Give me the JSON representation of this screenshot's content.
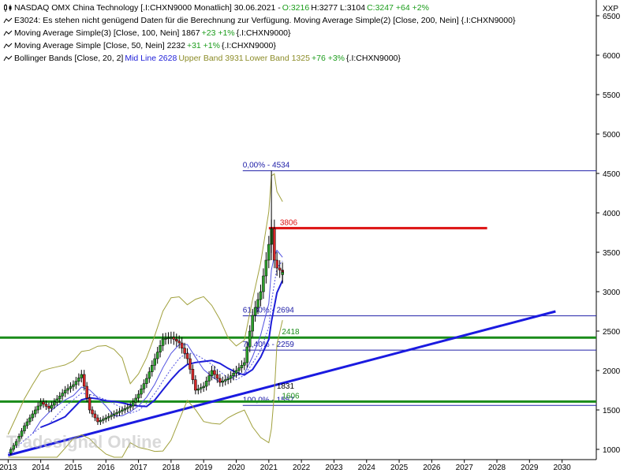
{
  "legend": {
    "line1": {
      "prefix": "NASDAQ OMX China Technology [.I:CHXN9000  Monatlich] 30.06.2021 - ",
      "open": "O:3216",
      "hlc": " H:3277 L:3104 ",
      "close_change": "C:3247 +64 +2%"
    },
    "line2": "E3024: Es stehen nicht genügend Daten für die Berechnung zur Verfügung. Moving Average Simple(2) [Close, 200, Nein] {.I:CHXN9000}",
    "line3": {
      "text": "Moving Average Simple(3) [Close, 100, Nein] 1867 ",
      "change": "+23 +1%",
      "suffix": " {.I:CHXN9000}"
    },
    "line4": {
      "text": "Moving Average Simple [Close, 50, Nein] 2232 ",
      "change": "+31 +1%",
      "suffix": " {.I:CHXN9000}"
    },
    "line5": {
      "prefix": "Bollinger Bands [Close, 20, 2] ",
      "mid": "Mid Line 2628",
      "upper": " Upper Band 3931",
      "lower": " Lower Band 1325 ",
      "change": "+76 +3%",
      "suffix": " {.I:CHXN9000}"
    }
  },
  "colors": {
    "candle_up": "#2ca02c",
    "candle_down": "#d62728",
    "wick": "#000000",
    "bollinger": "#a0a03c",
    "ma100": "#1d1dd8",
    "ma50": "#5050e0",
    "trendline": "#1a1ae0",
    "fib": "#2020a8",
    "support": "#1a8c1a",
    "resistance": "#dd1111"
  },
  "chart_data": {
    "type": "candlestick",
    "instrument": ".I:CHXN9000",
    "interval": "Monatlich",
    "x_axis": {
      "labels": [
        "2013",
        "2014",
        "2015",
        "2016",
        "2017",
        "2018",
        "2019",
        "2020",
        "2021",
        "2022",
        "2023",
        "2024",
        "2025",
        "2026",
        "2027",
        "2028",
        "2029",
        "2030"
      ]
    },
    "y_axis": {
      "label": "XXP",
      "ticks": [
        1000,
        1500,
        2000,
        2500,
        3000,
        3500,
        4000,
        4500,
        5000,
        5500,
        6000,
        6500
      ],
      "range": [
        870,
        6700
      ]
    },
    "closes": [
      {
        "year": 2013.0,
        "close": 950
      },
      {
        "year": 2013.25,
        "close": 1100
      },
      {
        "year": 2013.5,
        "close": 1300
      },
      {
        "year": 2013.75,
        "close": 1450
      },
      {
        "year": 2014.0,
        "close": 1600
      },
      {
        "year": 2014.25,
        "close": 1520
      },
      {
        "year": 2014.5,
        "close": 1640
      },
      {
        "year": 2014.75,
        "close": 1750
      },
      {
        "year": 2015.0,
        "close": 1820
      },
      {
        "year": 2015.25,
        "close": 1950
      },
      {
        "year": 2015.5,
        "close": 1500
      },
      {
        "year": 2015.75,
        "close": 1350
      },
      {
        "year": 2016.0,
        "close": 1400
      },
      {
        "year": 2016.25,
        "close": 1450
      },
      {
        "year": 2016.5,
        "close": 1500
      },
      {
        "year": 2016.75,
        "close": 1550
      },
      {
        "year": 2017.0,
        "close": 1700
      },
      {
        "year": 2017.25,
        "close": 1900
      },
      {
        "year": 2017.5,
        "close": 2150
      },
      {
        "year": 2017.75,
        "close": 2400
      },
      {
        "year": 2018.0,
        "close": 2420
      },
      {
        "year": 2018.25,
        "close": 2350
      },
      {
        "year": 2018.5,
        "close": 2150
      },
      {
        "year": 2018.75,
        "close": 1750
      },
      {
        "year": 2019.0,
        "close": 1800
      },
      {
        "year": 2019.25,
        "close": 2000
      },
      {
        "year": 2019.5,
        "close": 1850
      },
      {
        "year": 2019.75,
        "close": 1900
      },
      {
        "year": 2020.0,
        "close": 2000
      },
      {
        "year": 2020.25,
        "close": 2100
      },
      {
        "year": 2020.5,
        "close": 2700
      },
      {
        "year": 2020.75,
        "close": 3000
      },
      {
        "year": 2021.0,
        "close": 3600
      },
      {
        "year": 2021.08,
        "close": 3800
      },
      {
        "year": 2021.17,
        "close": 3400
      },
      {
        "year": 2021.25,
        "close": 3300
      },
      {
        "year": 2021.42,
        "close": 3247
      }
    ],
    "last_bar": {
      "date": "30.06.2021",
      "open": 3216,
      "high": 3277,
      "low": 3104,
      "close": 3247,
      "change": 64,
      "change_pct": 2
    },
    "all_time_high": 4534,
    "indicators": {
      "sma100": {
        "value": 1867,
        "change": 23,
        "change_pct": 1
      },
      "sma50": {
        "value": 2232,
        "change": 31,
        "change_pct": 1
      },
      "bollinger": {
        "period": 20,
        "stddev": 2,
        "mid": 2628,
        "upper": 3931,
        "lower": 1325
      }
    },
    "fibonacci": [
      {
        "label": "0,00% - 4534",
        "ratio": 0.0,
        "value": 4534
      },
      {
        "label": "61,80% - 2694",
        "ratio": 0.618,
        "value": 2694
      },
      {
        "label": "76,40% - 2259",
        "ratio": 0.764,
        "value": 2259
      },
      {
        "label": "100,0% - 1557",
        "ratio": 1.0,
        "value": 1557
      }
    ],
    "horizontal_levels": [
      {
        "label": "3806",
        "value": 3806,
        "color": "red"
      },
      {
        "label": "2418",
        "value": 2418,
        "color": "green"
      },
      {
        "label": "1606",
        "value": 1606,
        "color": "green"
      }
    ],
    "trendline": {
      "from": {
        "year": 2013.0,
        "value": 925
      },
      "to": {
        "year": 2029.8,
        "value": 2750
      },
      "label": "1831",
      "label_value": 1831
    },
    "watermark": "Tradesignal Online"
  }
}
